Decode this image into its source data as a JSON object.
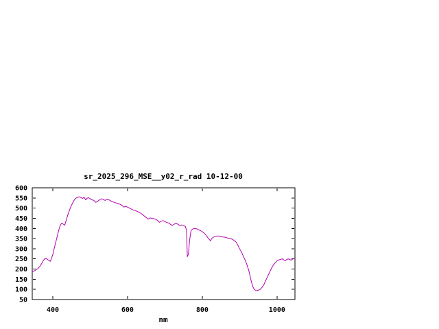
{
  "chart_data": {
    "type": "line",
    "title": "sr_2025_296_MSE__y02_r_rad 10-12-00",
    "xlabel": "nm",
    "ylabel": "",
    "xlim": [
      345,
      1048
    ],
    "ylim": [
      50,
      600
    ],
    "xticks": [
      400,
      600,
      800,
      1000
    ],
    "xtick_labels": [
      "400",
      "600",
      "800",
      "1000"
    ],
    "yticks": [
      50,
      100,
      150,
      200,
      250,
      300,
      350,
      400,
      450,
      500,
      550,
      600
    ],
    "ytick_labels": [
      "50",
      "100",
      "150",
      "200",
      "250",
      "300",
      "350",
      "400",
      "450",
      "500",
      "550",
      "600"
    ],
    "grid": false,
    "legend": "none",
    "background_color": "#ffffff",
    "axis_color": "#000000",
    "line_color": "#b000b0",
    "series": [
      {
        "name": "sr_2025_296_MSE__y02_r_rad",
        "x": [
          345,
          350,
          355,
          360,
          365,
          370,
          374,
          378,
          382,
          386,
          390,
          393,
          396,
          400,
          404,
          408,
          412,
          416,
          420,
          424,
          428,
          432,
          436,
          440,
          444,
          448,
          452,
          456,
          460,
          464,
          468,
          472,
          476,
          480,
          484,
          488,
          492,
          496,
          500,
          505,
          510,
          515,
          520,
          525,
          530,
          535,
          540,
          545,
          550,
          555,
          560,
          565,
          570,
          575,
          580,
          585,
          590,
          595,
          600,
          605,
          610,
          615,
          620,
          625,
          630,
          635,
          640,
          645,
          650,
          655,
          660,
          665,
          670,
          675,
          680,
          685,
          690,
          695,
          700,
          705,
          710,
          715,
          720,
          725,
          730,
          735,
          740,
          745,
          750,
          755,
          758,
          760,
          763,
          766,
          770,
          775,
          780,
          785,
          790,
          795,
          800,
          805,
          810,
          815,
          820,
          822,
          825,
          830,
          835,
          840,
          845,
          850,
          855,
          860,
          865,
          870,
          875,
          880,
          885,
          890,
          895,
          900,
          905,
          910,
          915,
          920,
          925,
          930,
          935,
          940,
          945,
          950,
          955,
          960,
          965,
          970,
          975,
          980,
          985,
          990,
          995,
          1000,
          1005,
          1010,
          1015,
          1018,
          1022,
          1026,
          1030,
          1034,
          1038,
          1042,
          1045,
          1048
        ],
        "y": [
          185,
          190,
          196,
          202,
          212,
          226,
          240,
          250,
          252,
          247,
          242,
          238,
          250,
          272,
          302,
          332,
          362,
          392,
          416,
          426,
          421,
          416,
          441,
          466,
          486,
          506,
          521,
          536,
          546,
          551,
          554,
          556,
          551,
          548,
          553,
          541,
          549,
          551,
          546,
          541,
          538,
          528,
          533,
          541,
          546,
          543,
          538,
          544,
          541,
          536,
          531,
          528,
          525,
          522,
          519,
          514,
          505,
          509,
          505,
          500,
          495,
          491,
          488,
          485,
          480,
          475,
          469,
          461,
          454,
          445,
          452,
          450,
          448,
          445,
          440,
          430,
          436,
          438,
          434,
          429,
          427,
          420,
          415,
          421,
          426,
          420,
          414,
          417,
          414,
          409,
          388,
          262,
          272,
          342,
          390,
          398,
          400,
          398,
          394,
          389,
          384,
          377,
          367,
          354,
          344,
          339,
          350,
          357,
          361,
          363,
          362,
          360,
          358,
          357,
          354,
          352,
          350,
          347,
          341,
          334,
          319,
          299,
          283,
          263,
          243,
          219,
          189,
          149,
          114,
          98,
          94,
          96,
          100,
          110,
          124,
          144,
          164,
          184,
          204,
          219,
          231,
          240,
          245,
          248,
          250,
          245,
          241,
          247,
          250,
          247,
          244,
          249,
          251,
          252
        ]
      }
    ]
  }
}
